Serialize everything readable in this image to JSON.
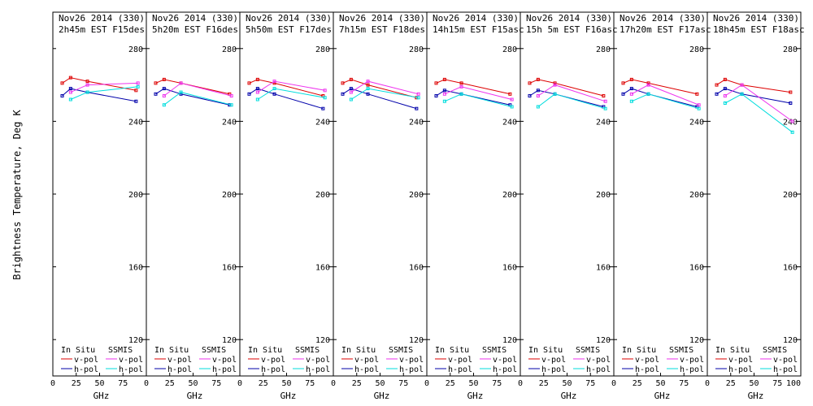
{
  "ylabel": "Brightness Temperature, Deg K",
  "legend": {
    "insitu_header": "In Situ",
    "ssmis_header": "SSMIS",
    "vpol": "v-pol",
    "hpol": "h-pol"
  },
  "colors": {
    "insitu_v": "#dd0000",
    "insitu_h": "#0000aa",
    "ssmis_v": "#ee33ee",
    "ssmis_h": "#00dddd"
  },
  "chart_data": [
    {
      "type": "line",
      "title": [
        "Nov26 2014 (330)",
        "2h45m EST F15des"
      ],
      "xlabel": "GHz",
      "xlim": [
        0,
        100
      ],
      "ylim": [
        100,
        300
      ],
      "yticks": [
        120,
        160,
        200,
        240,
        280
      ],
      "xticks": [
        0,
        25,
        50,
        75
      ],
      "series": [
        {
          "name": "In Situ v-pol",
          "x": [
            10,
            19,
            37,
            89
          ],
          "values": [
            261,
            264,
            262,
            257
          ]
        },
        {
          "name": "In Situ h-pol",
          "x": [
            10,
            19,
            37,
            89
          ],
          "values": [
            254,
            258,
            256,
            251
          ]
        },
        {
          "name": "SSMIS v-pol",
          "x": [
            19,
            37,
            91
          ],
          "values": [
            256,
            260,
            261
          ]
        },
        {
          "name": "SSMIS h-pol",
          "x": [
            19,
            37,
            91
          ],
          "values": [
            252,
            256,
            259
          ]
        }
      ]
    },
    {
      "type": "line",
      "title": [
        "Nov26 2014 (330)",
        "5h20m EST F16des"
      ],
      "xlabel": "GHz",
      "xlim": [
        0,
        100
      ],
      "ylim": [
        100,
        300
      ],
      "yticks": [
        120,
        160,
        200,
        240,
        280
      ],
      "xticks": [
        0,
        25,
        50,
        75
      ],
      "series": [
        {
          "name": "In Situ v-pol",
          "x": [
            10,
            19,
            37,
            89
          ],
          "values": [
            261,
            263,
            261,
            255
          ]
        },
        {
          "name": "In Situ h-pol",
          "x": [
            10,
            19,
            37,
            89
          ],
          "values": [
            255,
            258,
            255,
            249
          ]
        },
        {
          "name": "SSMIS v-pol",
          "x": [
            19,
            37,
            91
          ],
          "values": [
            254,
            261,
            254
          ]
        },
        {
          "name": "SSMIS h-pol",
          "x": [
            19,
            37,
            91
          ],
          "values": [
            249,
            256,
            249
          ]
        }
      ]
    },
    {
      "type": "line",
      "title": [
        "Nov26 2014 (330)",
        "5h50m EST F17des"
      ],
      "xlabel": "GHz",
      "xlim": [
        0,
        100
      ],
      "ylim": [
        100,
        300
      ],
      "yticks": [
        120,
        160,
        200,
        240,
        280
      ],
      "xticks": [
        0,
        25,
        50,
        75
      ],
      "series": [
        {
          "name": "In Situ v-pol",
          "x": [
            10,
            19,
            37,
            89
          ],
          "values": [
            261,
            263,
            261,
            254
          ]
        },
        {
          "name": "In Situ h-pol",
          "x": [
            10,
            19,
            37,
            89
          ],
          "values": [
            255,
            258,
            255,
            247
          ]
        },
        {
          "name": "SSMIS v-pol",
          "x": [
            19,
            37,
            91
          ],
          "values": [
            256,
            262,
            257
          ]
        },
        {
          "name": "SSMIS h-pol",
          "x": [
            19,
            37,
            91
          ],
          "values": [
            252,
            258,
            253
          ]
        }
      ]
    },
    {
      "type": "line",
      "title": [
        "Nov26 2014 (330)",
        "7h15m EST F18des"
      ],
      "xlabel": "GHz",
      "xlim": [
        0,
        100
      ],
      "ylim": [
        100,
        300
      ],
      "yticks": [
        120,
        160,
        200,
        240,
        280
      ],
      "xticks": [
        0,
        25,
        50,
        75
      ],
      "series": [
        {
          "name": "In Situ v-pol",
          "x": [
            10,
            19,
            37,
            89
          ],
          "values": [
            261,
            263,
            260,
            253
          ]
        },
        {
          "name": "In Situ h-pol",
          "x": [
            10,
            19,
            37,
            89
          ],
          "values": [
            255,
            258,
            255,
            247
          ]
        },
        {
          "name": "SSMIS v-pol",
          "x": [
            19,
            37,
            91
          ],
          "values": [
            256,
            262,
            255
          ]
        },
        {
          "name": "SSMIS h-pol",
          "x": [
            19,
            37,
            91
          ],
          "values": [
            252,
            258,
            253
          ]
        }
      ]
    },
    {
      "type": "line",
      "title": [
        "Nov26 2014 (330)",
        "14h15m EST F15asc"
      ],
      "xlabel": "GHz",
      "xlim": [
        0,
        100
      ],
      "ylim": [
        100,
        300
      ],
      "yticks": [
        120,
        160,
        200,
        240,
        280
      ],
      "xticks": [
        0,
        25,
        50,
        75
      ],
      "series": [
        {
          "name": "In Situ v-pol",
          "x": [
            10,
            19,
            37,
            89
          ],
          "values": [
            261,
            263,
            261,
            255
          ]
        },
        {
          "name": "In Situ h-pol",
          "x": [
            10,
            19,
            37,
            89
          ],
          "values": [
            254,
            257,
            255,
            249
          ]
        },
        {
          "name": "SSMIS v-pol",
          "x": [
            19,
            37,
            91
          ],
          "values": [
            255,
            259,
            252
          ]
        },
        {
          "name": "SSMIS h-pol",
          "x": [
            19,
            37,
            91
          ],
          "values": [
            251,
            255,
            248
          ]
        }
      ]
    },
    {
      "type": "line",
      "title": [
        "Nov26 2014 (330)",
        "15h 5m EST F16asc"
      ],
      "xlabel": "GHz",
      "xlim": [
        0,
        100
      ],
      "ylim": [
        100,
        300
      ],
      "yticks": [
        120,
        160,
        200,
        240,
        280
      ],
      "xticks": [
        0,
        25,
        50,
        75
      ],
      "series": [
        {
          "name": "In Situ v-pol",
          "x": [
            10,
            19,
            37,
            89
          ],
          "values": [
            261,
            263,
            261,
            254
          ]
        },
        {
          "name": "In Situ h-pol",
          "x": [
            10,
            19,
            37,
            89
          ],
          "values": [
            254,
            257,
            255,
            248
          ]
        },
        {
          "name": "SSMIS v-pol",
          "x": [
            19,
            37,
            91
          ],
          "values": [
            254,
            260,
            251
          ]
        },
        {
          "name": "SSMIS h-pol",
          "x": [
            19,
            37,
            91
          ],
          "values": [
            248,
            255,
            247
          ]
        }
      ]
    },
    {
      "type": "line",
      "title": [
        "Nov26 2014 (330)",
        "17h20m EST F17asc"
      ],
      "xlabel": "GHz",
      "xlim": [
        0,
        100
      ],
      "ylim": [
        100,
        300
      ],
      "yticks": [
        120,
        160,
        200,
        240,
        280
      ],
      "xticks": [
        0,
        25,
        50,
        75
      ],
      "series": [
        {
          "name": "In Situ v-pol",
          "x": [
            10,
            19,
            37,
            89
          ],
          "values": [
            261,
            263,
            261,
            255
          ]
        },
        {
          "name": "In Situ h-pol",
          "x": [
            10,
            19,
            37,
            89
          ],
          "values": [
            255,
            258,
            255,
            248
          ]
        },
        {
          "name": "SSMIS v-pol",
          "x": [
            19,
            37,
            91
          ],
          "values": [
            255,
            260,
            249
          ]
        },
        {
          "name": "SSMIS h-pol",
          "x": [
            19,
            37,
            91
          ],
          "values": [
            251,
            255,
            247
          ]
        }
      ]
    },
    {
      "type": "line",
      "title": [
        "Nov26 2014 (330)",
        "18h45m EST F18asc"
      ],
      "xlabel": "GHz",
      "xlim": [
        0,
        100
      ],
      "ylim": [
        100,
        300
      ],
      "yticks": [
        120,
        160,
        200,
        240,
        280
      ],
      "xticks": [
        0,
        25,
        50,
        75,
        100
      ],
      "series": [
        {
          "name": "In Situ v-pol",
          "x": [
            10,
            19,
            37,
            89
          ],
          "values": [
            260,
            263,
            260,
            256
          ]
        },
        {
          "name": "In Situ h-pol",
          "x": [
            10,
            19,
            37,
            89
          ],
          "values": [
            255,
            258,
            255,
            250
          ]
        },
        {
          "name": "SSMIS v-pol",
          "x": [
            19,
            37,
            91
          ],
          "values": [
            254,
            260,
            240
          ]
        },
        {
          "name": "SSMIS h-pol",
          "x": [
            19,
            37,
            91
          ],
          "values": [
            250,
            255,
            234
          ]
        }
      ]
    }
  ]
}
